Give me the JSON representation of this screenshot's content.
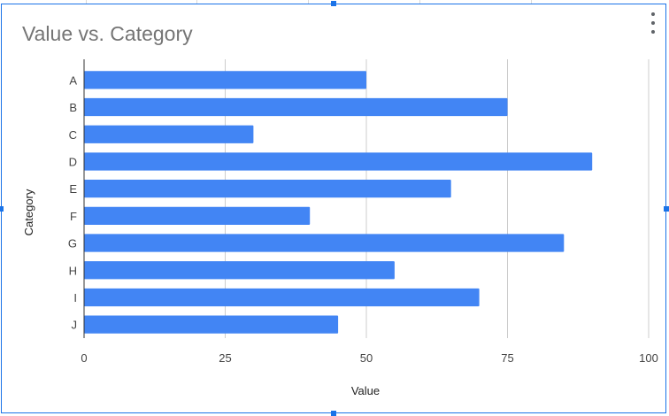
{
  "chart_data": {
    "type": "bar",
    "orientation": "horizontal",
    "title": "Value vs. Category",
    "xlabel": "Value",
    "ylabel": "Category",
    "categories": [
      "A",
      "B",
      "C",
      "D",
      "E",
      "F",
      "G",
      "H",
      "I",
      "J"
    ],
    "values": [
      50,
      75,
      30,
      90,
      65,
      40,
      85,
      55,
      70,
      45
    ],
    "xlim": [
      0,
      100
    ],
    "xticks": [
      "0",
      "25",
      "50",
      "75",
      "100"
    ],
    "grid": true,
    "legend": "none",
    "bar_color": "#4285f4"
  },
  "menu": {
    "icon": "more-vert-icon"
  },
  "colors": {
    "selection": "#1a73e8",
    "gridline": "#d9d9d9"
  }
}
